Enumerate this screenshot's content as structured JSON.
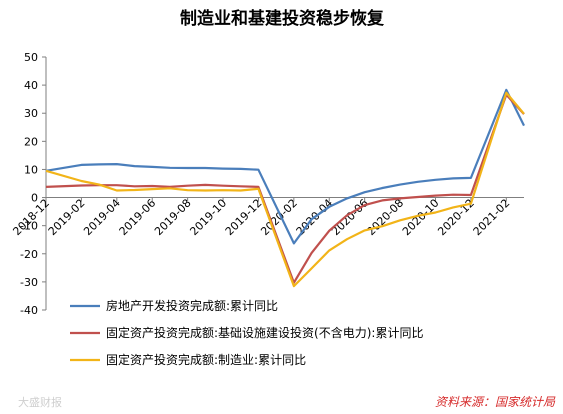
{
  "chart_data": {
    "type": "line",
    "title": "制造业和基建投资稳步恢复",
    "ylim": [
      -40,
      50
    ],
    "yticks": [
      -40,
      -30,
      -20,
      -10,
      0,
      10,
      20,
      30,
      40,
      50
    ],
    "x": [
      "2018-12",
      "2019-01",
      "2019-02",
      "2019-03",
      "2019-04",
      "2019-05",
      "2019-06",
      "2019-07",
      "2019-08",
      "2019-09",
      "2019-10",
      "2019-11",
      "2019-12",
      "2020-01",
      "2020-02",
      "2020-03",
      "2020-04",
      "2020-05",
      "2020-06",
      "2020-07",
      "2020-08",
      "2020-09",
      "2020-10",
      "2020-11",
      "2020-12",
      "2021-01",
      "2021-02",
      "2021-03"
    ],
    "xtick_labels": [
      "2018-12",
      "2019-02",
      "2019-04",
      "2019-06",
      "2019-08",
      "2019-10",
      "2019-12",
      "2020-02",
      "2020-04",
      "2020-06",
      "2020-08",
      "2020-10",
      "2020-12",
      "2021-02"
    ],
    "series": [
      {
        "name": "房地产开发投资完成额:累计同比",
        "color": "#4a7ebb",
        "values": [
          9.5,
          null,
          11.6,
          11.8,
          11.9,
          11.2,
          10.9,
          10.6,
          10.5,
          10.5,
          10.3,
          10.2,
          9.9,
          null,
          -16.3,
          -7.7,
          -3.3,
          -0.3,
          1.9,
          3.4,
          4.6,
          5.6,
          6.3,
          6.8,
          7.0,
          null,
          38.3,
          25.6
        ]
      },
      {
        "name": "固定资产投资完成额:基础设施建设投资(不含电力):累计同比",
        "color": "#c0504d",
        "values": [
          3.8,
          null,
          4.3,
          4.4,
          4.4,
          4.0,
          4.1,
          3.8,
          4.2,
          4.5,
          4.2,
          4.0,
          3.8,
          null,
          -30.3,
          -19.7,
          -11.8,
          -6.3,
          -2.7,
          -1.0,
          -0.3,
          0.2,
          0.7,
          1.0,
          0.9,
          null,
          36.6,
          29.7
        ]
      },
      {
        "name": "固定资产投资完成额:制造业:累计同比",
        "color": "#f2b418",
        "values": [
          9.5,
          null,
          5.9,
          4.6,
          2.5,
          2.7,
          3.0,
          3.3,
          2.6,
          2.5,
          2.6,
          2.5,
          3.1,
          null,
          -31.5,
          -25.2,
          -18.8,
          -14.8,
          -11.7,
          -10.2,
          -8.1,
          -6.5,
          -5.3,
          -3.5,
          -2.2,
          null,
          37.3,
          29.8
        ]
      }
    ],
    "legend_position": "bottom",
    "grid": false,
    "source": "资料来源：国家统计局"
  },
  "watermark": "大盛财报"
}
